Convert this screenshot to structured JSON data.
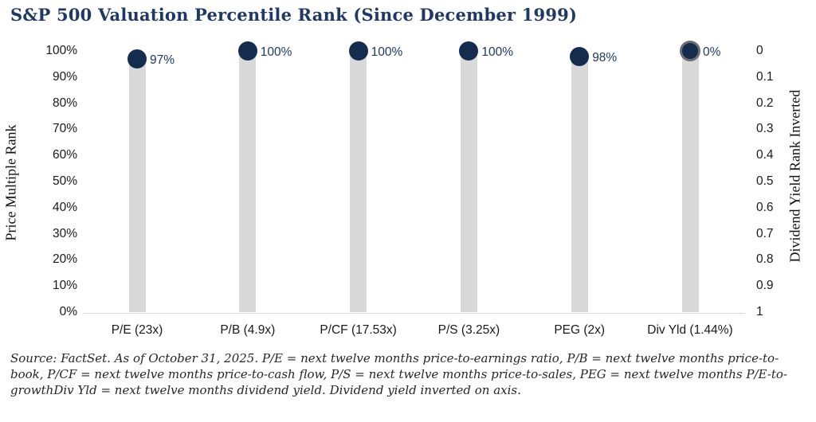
{
  "title": "S&P 500 Valuation Percentile Rank (Since December 1999)",
  "chart_data": {
    "type": "bar",
    "title": "S&P 500 Valuation Percentile Rank (Since December 1999)",
    "categories": [
      "P/E (23x)",
      "P/B (4.9x)",
      "P/CF (17.53x)",
      "P/S (3.25x)",
      "PEG (2x)",
      "Div Yld (1.44%)"
    ],
    "series": [
      {
        "name": "Price Multiple Rank (left axis)",
        "values": [
          97,
          100,
          100,
          100,
          98,
          null
        ]
      },
      {
        "name": "Dividend Yield Rank Inverted (right axis)",
        "values": [
          null,
          null,
          null,
          null,
          null,
          0
        ]
      }
    ],
    "value_labels": [
      "97%",
      "100%",
      "100%",
      "100%",
      "98%",
      "0%"
    ],
    "bar_height_pct_of_plot": [
      97,
      100,
      100,
      100,
      98,
      100
    ],
    "marker_ring": [
      false,
      false,
      false,
      false,
      false,
      true
    ],
    "ylabel_left": "Price Multiple Rank",
    "ylabel_right": "Dividend Yield Rank Inverted",
    "y_left_ticks": [
      "100%",
      "90%",
      "80%",
      "70%",
      "60%",
      "50%",
      "40%",
      "30%",
      "20%",
      "10%",
      "0%"
    ],
    "y_right_ticks": [
      "0",
      "0.1",
      "0.2",
      "0.3",
      "0.4",
      "0.5",
      "0.6",
      "0.7",
      "0.8",
      "0.9",
      "1"
    ],
    "ylim_left_pct": [
      0,
      100
    ],
    "ylim_right": [
      0,
      1
    ],
    "right_axis_inverted": true,
    "grid": "off",
    "legend": "none"
  },
  "colors": {
    "title_navy": "#1F3864",
    "marker_navy": "#152C4E",
    "data_label_navy": "#1F3864",
    "bar_gray": "#D9D9D9",
    "divyld_marker_ring": "#6E6E6E",
    "axis_line": "#D6D6D6",
    "tick_text": "#1A1A1A",
    "footer_text": "#262626"
  },
  "footer": {
    "text": "Source: FactSet. As of October 31, 2025. P/E = next twelve months price-to-earnings ratio, P/B = next twelve months price-to-book, P/CF = next twelve months price-to-cash flow, P/S = next twelve months price-to-sales, PEG = next twelve months P/E-to-growthDiv Yld = next twelve months dividend yield. Dividend yield inverted on axis."
  }
}
